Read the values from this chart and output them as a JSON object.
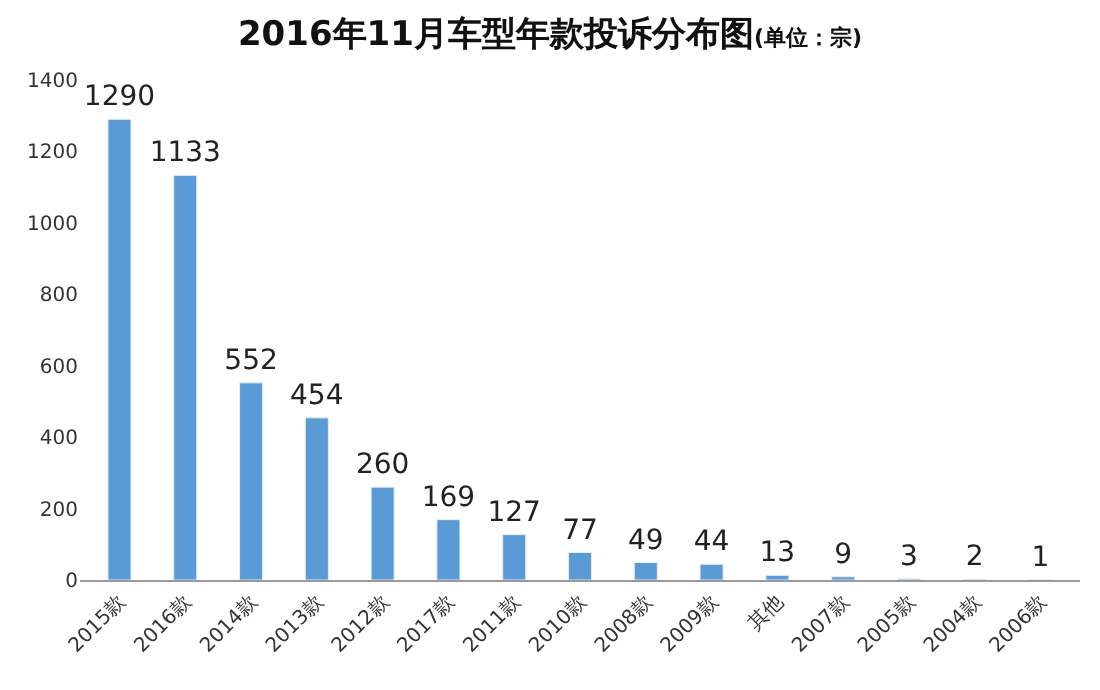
{
  "chart_data": {
    "type": "bar",
    "title": "2016年11月车型年款投诉分布图",
    "subtitle": "(单位：宗)",
    "categories": [
      "2015款",
      "2016款",
      "2014款",
      "2013款",
      "2012款",
      "2017款",
      "2011款",
      "2010款",
      "2008款",
      "2009款",
      "其他",
      "2007款",
      "2005款",
      "2004款",
      "2006款"
    ],
    "values": [
      1290,
      1133,
      552,
      454,
      260,
      169,
      127,
      77,
      49,
      44,
      13,
      9,
      3,
      2,
      1
    ],
    "color": "#5b9bd5",
    "data_labels": true,
    "ylim": [
      0,
      1400
    ],
    "yticks": [
      0,
      200,
      400,
      600,
      800,
      1000,
      1200,
      1400
    ],
    "grid": false,
    "legend": false
  }
}
